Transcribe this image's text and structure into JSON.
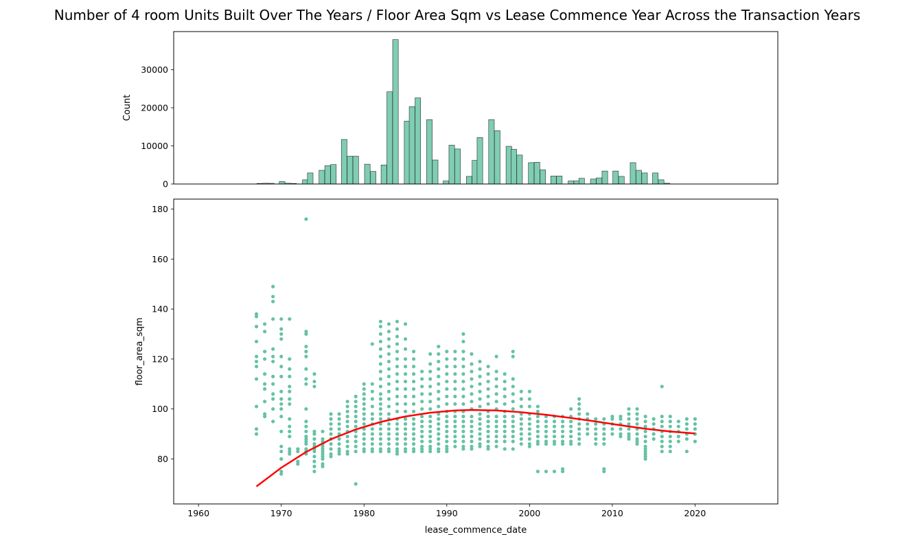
{
  "figure": {
    "title": "Number of 4 room Units Built Over The Years / Floor Area Sqm vs Lease Commence Year Across the Transaction Years"
  },
  "chart_data": [
    {
      "type": "bar",
      "name": "histogram",
      "xlabel": "",
      "ylabel": "Count",
      "xlim": [
        1957,
        2030
      ],
      "ylim": [
        0,
        40000
      ],
      "yticks": [
        0,
        10000,
        20000,
        30000
      ],
      "bar_color": "#66c2a5",
      "x": [
        1967.4,
        1968.1,
        1968.8,
        1969.4,
        1970.1,
        1970.8,
        1971.5,
        1972.2,
        1972.9,
        1973.5,
        1974.2,
        1974.9,
        1975.6,
        1976.3,
        1977.0,
        1977.6,
        1978.3,
        1979.0,
        1979.7,
        1980.4,
        1981.1,
        1981.7,
        1982.4,
        1983.1,
        1983.8,
        1984.5,
        1985.2,
        1985.8,
        1986.5,
        1987.2,
        1987.9,
        1988.6,
        1989.3,
        1989.9,
        1990.6,
        1991.3,
        1992.0,
        1992.7,
        1993.4,
        1994.0,
        1994.7,
        1995.4,
        1996.1,
        1996.8,
        1997.5,
        1998.1,
        1998.8,
        1999.5,
        2000.2,
        2000.9,
        2001.6,
        2002.2,
        2002.9,
        2003.6,
        2004.3,
        2005.0,
        2005.7,
        2006.3,
        2007.0,
        2007.7,
        2008.4,
        2009.1,
        2009.8,
        2010.4,
        2011.1,
        2011.8,
        2012.5,
        2013.2,
        2013.9,
        2014.5,
        2015.2,
        2015.9,
        2016.6,
        2017.3,
        2018.0,
        2018.6,
        2019.3,
        2020.0
      ],
      "values": [
        150,
        200,
        180,
        0,
        650,
        200,
        150,
        0,
        1100,
        2900,
        0,
        3600,
        4800,
        5100,
        0,
        11700,
        7300,
        7300,
        0,
        5200,
        3300,
        0,
        5000,
        24200,
        37900,
        0,
        16500,
        20300,
        22600,
        0,
        16900,
        6300,
        0,
        800,
        10200,
        9200,
        0,
        2000,
        6200,
        12200,
        0,
        16900,
        14000,
        0,
        9900,
        9100,
        7600,
        0,
        5600,
        5700,
        3700,
        0,
        2100,
        2100,
        0,
        800,
        800,
        1500,
        0,
        1300,
        1600,
        3400,
        0,
        3400,
        2000,
        0,
        5600,
        3600,
        2900,
        0,
        2900,
        1100,
        200,
        0,
        0,
        0,
        0,
        0
      ]
    },
    {
      "type": "scatter",
      "name": "floor area vs lease year",
      "xlabel": "lease_commence_date",
      "ylabel": "floor_area_sqm",
      "xlim": [
        1957,
        2030
      ],
      "ylim": [
        62,
        184
      ],
      "xticks": [
        1960,
        1970,
        1980,
        1990,
        2000,
        2010,
        2020
      ],
      "yticks": [
        80,
        100,
        120,
        140,
        160,
        180
      ],
      "point_color": "#66c2a5",
      "points": [
        {
          "x": 1967,
          "y": [
            138,
            137,
            133,
            127,
            121,
            119,
            117,
            112,
            101,
            92,
            90
          ]
        },
        {
          "x": 1968,
          "y": [
            134,
            131,
            123,
            120,
            114,
            110,
            108,
            103,
            98,
            97
          ]
        },
        {
          "x": 1969,
          "y": [
            149,
            145,
            143,
            136,
            124,
            121,
            119,
            113,
            110,
            106,
            104,
            100,
            95
          ]
        },
        {
          "x": 1970,
          "y": [
            136,
            132,
            130,
            128,
            121,
            117,
            113,
            107,
            104,
            102,
            100,
            97,
            91,
            85,
            83,
            80,
            75,
            74
          ]
        },
        {
          "x": 1971,
          "y": [
            136,
            120,
            116,
            113,
            109,
            107,
            104,
            102,
            96,
            93,
            91,
            89,
            84,
            83,
            82
          ]
        },
        {
          "x": 1972,
          "y": [
            84,
            83,
            79,
            78
          ]
        },
        {
          "x": 1973,
          "y": [
            176,
            131,
            130,
            125,
            123,
            121,
            116,
            112,
            110,
            100,
            95,
            93,
            91,
            89,
            88,
            87,
            86,
            84,
            83,
            82
          ]
        },
        {
          "x": 1974,
          "y": [
            114,
            111,
            109,
            91,
            90,
            88,
            86,
            85,
            84,
            83,
            81,
            79,
            77,
            75
          ]
        },
        {
          "x": 1975,
          "y": [
            91,
            88,
            87,
            86,
            85,
            84,
            83,
            82,
            81,
            80,
            78,
            77
          ]
        },
        {
          "x": 1976,
          "y": [
            98,
            96,
            94,
            92,
            90,
            88,
            86,
            84,
            82,
            81
          ]
        },
        {
          "x": 1977,
          "y": [
            98,
            96,
            94,
            92,
            90,
            88,
            86,
            84,
            83,
            82
          ]
        },
        {
          "x": 1978,
          "y": [
            103,
            101,
            99,
            97,
            95,
            93,
            91,
            89,
            87,
            85,
            83,
            82
          ]
        },
        {
          "x": 1979,
          "y": [
            105,
            103,
            101,
            99,
            97,
            95,
            93,
            91,
            89,
            87,
            85,
            83,
            70
          ]
        },
        {
          "x": 1980,
          "y": [
            110,
            108,
            106,
            104,
            102,
            100,
            98,
            96,
            94,
            92,
            90,
            88,
            86,
            84,
            83
          ]
        },
        {
          "x": 1981,
          "y": [
            126,
            110,
            107,
            104,
            101,
            98,
            96,
            94,
            92,
            90,
            88,
            86,
            84,
            83
          ]
        },
        {
          "x": 1982,
          "y": [
            135,
            133,
            130,
            127,
            124,
            121,
            118,
            115,
            112,
            109,
            106,
            104,
            102,
            100,
            98,
            96,
            94,
            92,
            90,
            88,
            86,
            84,
            83
          ]
        },
        {
          "x": 1983,
          "y": [
            134,
            131,
            128,
            125,
            122,
            119,
            116,
            113,
            110,
            107,
            104,
            101,
            98,
            96,
            94,
            92,
            90,
            88,
            86,
            84,
            83
          ]
        },
        {
          "x": 1984,
          "y": [
            135,
            132,
            129,
            126,
            123,
            120,
            117,
            114,
            111,
            108,
            105,
            102,
            99,
            96,
            94,
            92,
            90,
            88,
            86,
            84,
            83,
            82
          ]
        },
        {
          "x": 1985,
          "y": [
            134,
            128,
            124,
            120,
            117,
            114,
            111,
            108,
            105,
            102,
            99,
            96,
            94,
            92,
            90,
            88,
            86,
            84,
            83
          ]
        },
        {
          "x": 1986,
          "y": [
            123,
            120,
            117,
            114,
            111,
            108,
            105,
            102,
            99,
            96,
            94,
            92,
            90,
            88,
            86,
            84,
            83
          ]
        },
        {
          "x": 1987,
          "y": [
            115,
            112,
            109,
            106,
            103,
            100,
            97,
            95,
            93,
            91,
            89,
            87,
            85,
            84,
            83
          ]
        },
        {
          "x": 1988,
          "y": [
            122,
            118,
            115,
            112,
            109,
            106,
            103,
            100,
            97,
            95,
            93,
            91,
            89,
            87,
            85,
            84,
            83
          ]
        },
        {
          "x": 1989,
          "y": [
            125,
            122,
            119,
            116,
            113,
            110,
            107,
            104,
            101,
            98,
            96,
            94,
            92,
            90,
            88,
            86,
            84,
            83
          ]
        },
        {
          "x": 1990,
          "y": [
            123,
            120,
            117,
            114,
            111,
            108,
            105,
            102,
            99,
            97,
            95,
            93,
            91,
            89,
            87,
            85,
            84,
            83
          ]
        },
        {
          "x": 1991,
          "y": [
            123,
            120,
            117,
            114,
            111,
            108,
            105,
            102,
            99,
            97,
            95,
            93,
            91,
            89,
            87,
            85
          ]
        },
        {
          "x": 1992,
          "y": [
            130,
            127,
            123,
            120,
            117,
            114,
            111,
            108,
            105,
            102,
            99,
            97,
            95,
            93,
            91,
            89,
            87,
            85,
            84
          ]
        },
        {
          "x": 1993,
          "y": [
            122,
            118,
            115,
            112,
            109,
            106,
            103,
            100,
            97,
            95,
            93,
            91,
            89,
            87,
            85,
            84
          ]
        },
        {
          "x": 1994,
          "y": [
            119,
            116,
            113,
            110,
            107,
            104,
            101,
            98,
            96,
            94,
            92,
            90,
            88,
            86,
            85
          ]
        },
        {
          "x": 1995,
          "y": [
            117,
            114,
            111,
            108,
            105,
            102,
            99,
            97,
            95,
            93,
            91,
            89,
            87,
            85,
            84
          ]
        },
        {
          "x": 1996,
          "y": [
            121,
            115,
            112,
            109,
            106,
            103,
            100,
            97,
            95,
            93,
            91,
            89,
            87,
            85
          ]
        },
        {
          "x": 1997,
          "y": [
            114,
            111,
            108,
            105,
            102,
            99,
            97,
            95,
            93,
            91,
            89,
            87,
            84
          ]
        },
        {
          "x": 1998,
          "y": [
            123,
            121,
            112,
            109,
            106,
            103,
            100,
            97,
            95,
            93,
            91,
            89,
            87,
            84
          ]
        },
        {
          "x": 1999,
          "y": [
            107,
            104,
            101,
            98,
            96,
            94,
            92,
            90,
            88,
            86
          ]
        },
        {
          "x": 2000,
          "y": [
            107,
            104,
            101,
            98,
            96,
            94,
            92,
            90,
            88,
            86,
            85
          ]
        },
        {
          "x": 2001,
          "y": [
            101,
            99,
            97,
            95,
            93,
            91,
            89,
            87,
            86,
            75
          ]
        },
        {
          "x": 2002,
          "y": [
            97,
            95,
            93,
            91,
            89,
            87,
            86,
            75
          ]
        },
        {
          "x": 2003,
          "y": [
            97,
            95,
            93,
            91,
            89,
            87,
            86,
            75
          ]
        },
        {
          "x": 2004,
          "y": [
            97,
            95,
            93,
            91,
            89,
            87,
            86,
            76,
            75
          ]
        },
        {
          "x": 2005,
          "y": [
            100,
            97,
            95,
            93,
            91,
            89,
            87,
            86
          ]
        },
        {
          "x": 2006,
          "y": [
            104,
            102,
            100,
            98,
            96,
            94,
            92,
            90,
            88,
            86
          ]
        },
        {
          "x": 2007,
          "y": [
            98,
            96,
            94,
            92,
            90
          ]
        },
        {
          "x": 2008,
          "y": [
            96,
            94,
            92,
            90,
            88,
            86
          ]
        },
        {
          "x": 2009,
          "y": [
            96,
            94,
            92,
            90,
            88,
            86,
            76,
            75
          ]
        },
        {
          "x": 2010,
          "y": [
            97,
            96,
            94,
            92,
            90
          ]
        },
        {
          "x": 2011,
          "y": [
            97,
            96,
            94,
            92,
            90,
            89
          ]
        },
        {
          "x": 2012,
          "y": [
            100,
            98,
            96,
            94,
            92,
            90,
            89,
            88
          ]
        },
        {
          "x": 2013,
          "y": [
            100,
            98,
            96,
            94,
            92,
            90,
            88,
            87,
            86
          ]
        },
        {
          "x": 2014,
          "y": [
            97,
            95,
            93,
            91,
            89,
            87,
            85,
            84,
            83,
            82,
            81,
            80
          ]
        },
        {
          "x": 2015,
          "y": [
            96,
            94,
            92,
            90,
            88
          ]
        },
        {
          "x": 2016,
          "y": [
            109,
            97,
            95,
            93,
            91,
            89,
            87,
            85,
            83
          ]
        },
        {
          "x": 2017,
          "y": [
            97,
            95,
            93,
            91,
            89,
            87,
            85,
            83
          ]
        },
        {
          "x": 2018,
          "y": [
            95,
            93,
            91,
            89,
            87
          ]
        },
        {
          "x": 2019,
          "y": [
            96,
            94,
            92,
            90,
            88,
            83
          ]
        },
        {
          "x": 2020,
          "y": [
            96,
            94,
            92,
            90,
            87
          ]
        }
      ]
    },
    {
      "type": "line",
      "name": "trend",
      "color": "#ff0000",
      "x": [
        1967,
        1970,
        1973,
        1976,
        1979,
        1982,
        1985,
        1988,
        1991,
        1993,
        1996,
        1999,
        2002,
        2005,
        2008,
        2011,
        2014,
        2017,
        2020
      ],
      "y": [
        69,
        76.5,
        82.8,
        87.9,
        91.8,
        94.8,
        97,
        98.5,
        99.4,
        99.6,
        99.4,
        98.7,
        97.7,
        96.4,
        95,
        93.5,
        92.1,
        91,
        90.2
      ]
    }
  ]
}
